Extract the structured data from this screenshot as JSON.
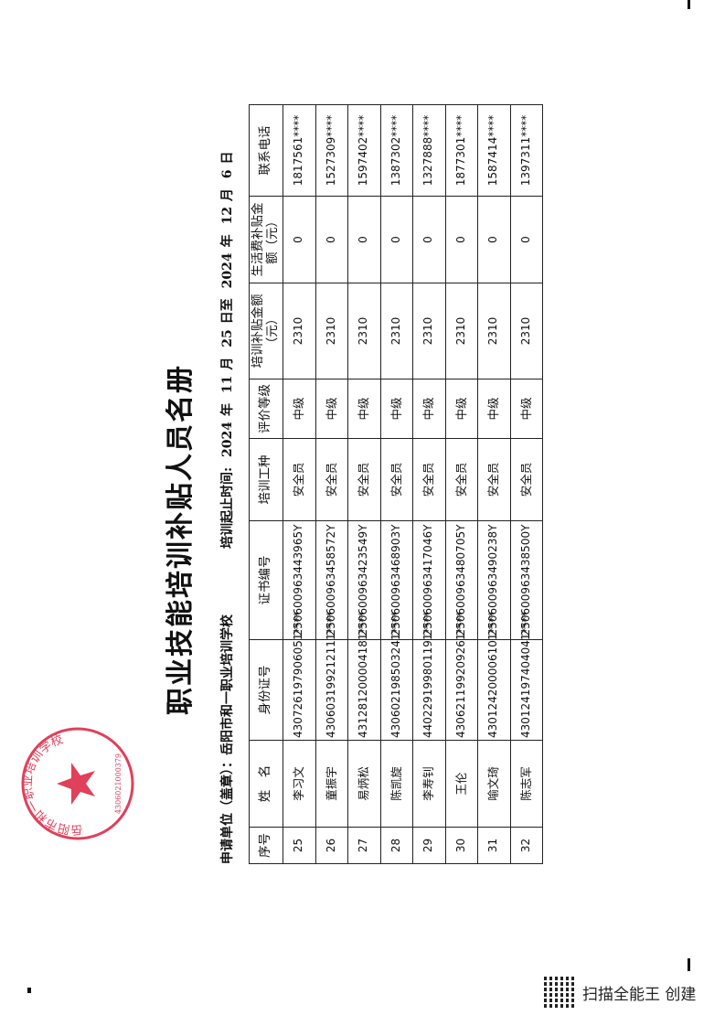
{
  "document": {
    "title": "职业技能培训补贴人员名册",
    "applicant_label": "申请单位（盖章）：",
    "applicant": "岳阳市和一职业培训学校",
    "period_label": "培训起止时间:",
    "period": {
      "start_year": "2024",
      "y1": "年",
      "start_month": "11",
      "m1": "月",
      "start_day": "25",
      "d1": "日至",
      "end_year": "2024",
      "y2": "年",
      "end_month": "12",
      "m2": "月",
      "end_day": "6",
      "d2": "日"
    },
    "stamp_color": "#e0405a",
    "stamp_text": "岳阳市和一职业培训学校",
    "stamp_number": "4306021000379"
  },
  "table": {
    "headers": [
      "序号",
      "姓　名",
      "身份证号",
      "证书编号",
      "培训工种",
      "评价等级",
      "培训补贴金额（元）",
      "生活费补贴金额（元）",
      "联系电话"
    ],
    "rows": [
      [
        "25",
        "李习文",
        "430726197906051****",
        "250600963443965Y",
        "安全员",
        "中级",
        "2310",
        "0",
        "1817561****"
      ],
      [
        "26",
        "童振宇",
        "430603199212111****",
        "250600963458572Y",
        "安全员",
        "中级",
        "2310",
        "0",
        "1527309****"
      ],
      [
        "27",
        "易炳松",
        "431281200004181****",
        "250600963423549Y",
        "安全员",
        "中级",
        "2310",
        "0",
        "1597402****"
      ],
      [
        "28",
        "陈凯旋",
        "430602198503241****",
        "250600963468903Y",
        "安全员",
        "中级",
        "2310",
        "0",
        "1387302****"
      ],
      [
        "29",
        "李寿钊",
        "440229199801191****",
        "250600963417046Y",
        "安全员",
        "中级",
        "2310",
        "0",
        "1327888****"
      ],
      [
        "30",
        "王伦",
        "430621199209261****",
        "250600963480705Y",
        "安全员",
        "中级",
        "2310",
        "0",
        "1877301****"
      ],
      [
        "31",
        "喻文琦",
        "430124200006101****",
        "250600963490238Y",
        "安全员",
        "中级",
        "2310",
        "0",
        "1587414****"
      ],
      [
        "32",
        "陈志军",
        "430124197404041****",
        "250600963438500Y",
        "安全员",
        "中级",
        "2310",
        "0",
        "1397311****"
      ]
    ]
  },
  "watermark": {
    "text": "扫描全能王 创建"
  }
}
